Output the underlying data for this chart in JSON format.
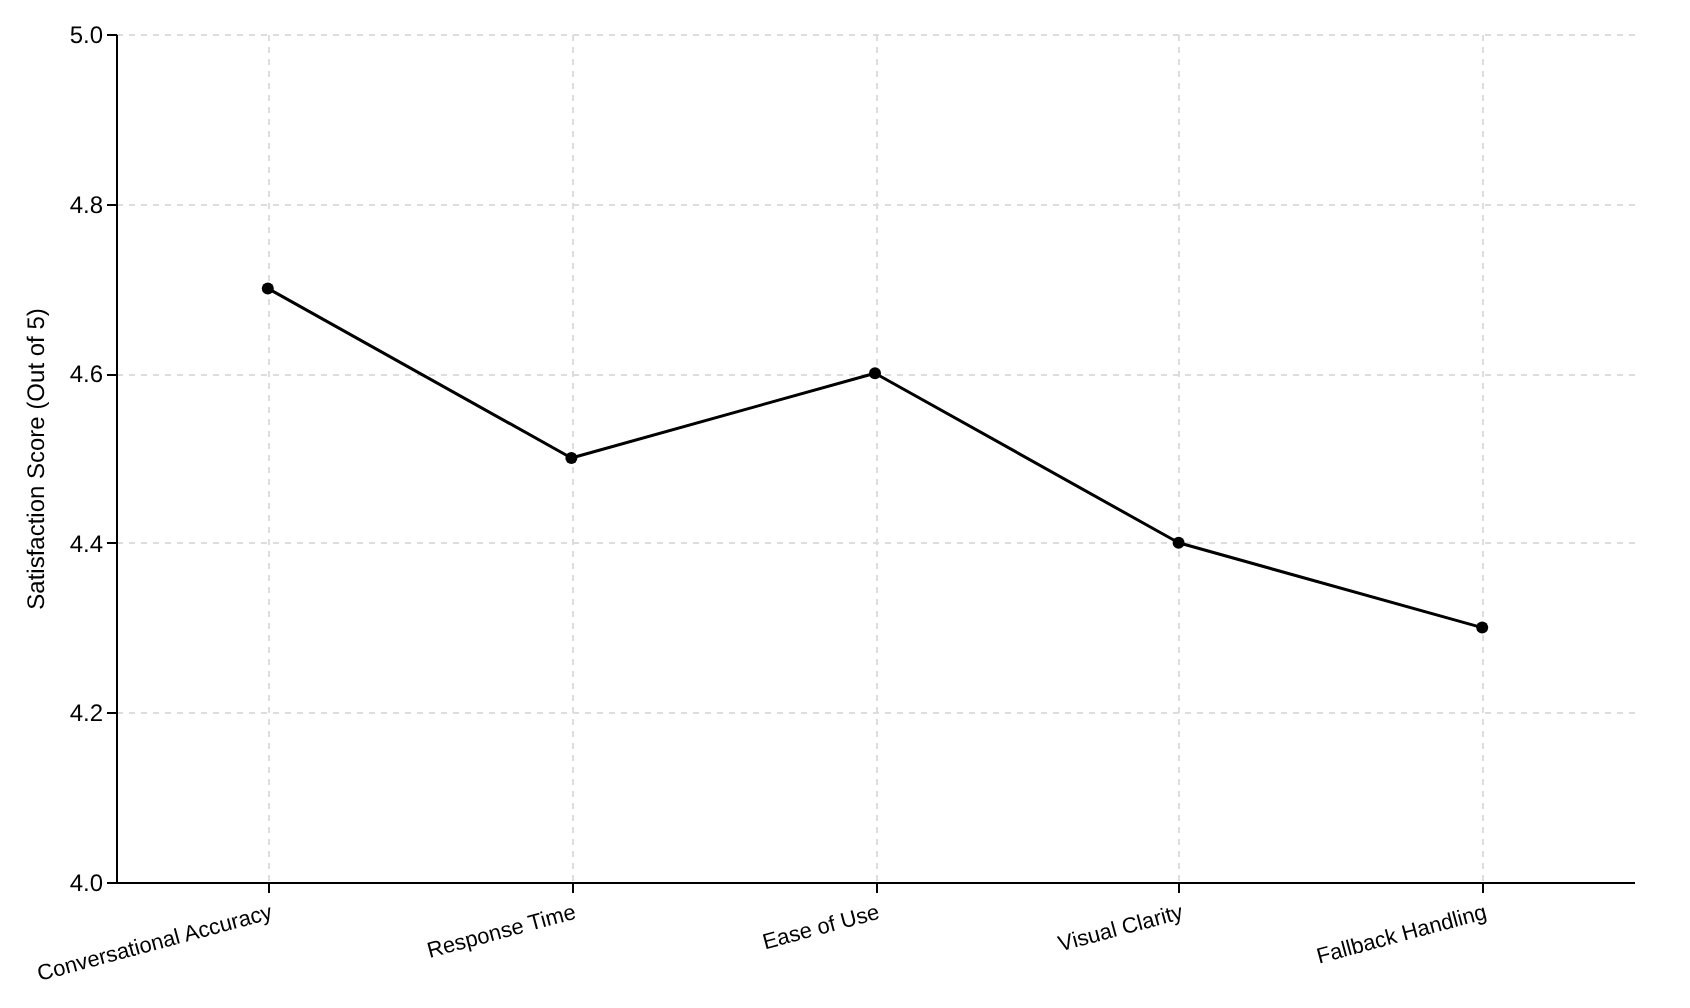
{
  "chart_data": {
    "type": "line",
    "categories": [
      "Conversational Accuracy",
      "Response Time",
      "Ease of Use",
      "Visual Clarity",
      "Fallback Handling"
    ],
    "series": [
      {
        "color": "#000000",
        "values": [
          4.7,
          4.5,
          4.6,
          4.4,
          4.3
        ]
      }
    ],
    "ylabel": "Satisfaction Score (Out of 5)",
    "ylim": [
      4.0,
      5.0
    ],
    "yticks": [
      {
        "value": 4.0,
        "label": "4.0"
      },
      4.2,
      4.4,
      4.6,
      4.8,
      {
        "value": 5.0,
        "label": "5.0"
      }
    ],
    "grid": true,
    "marker": "circle",
    "line_style": "solid"
  }
}
